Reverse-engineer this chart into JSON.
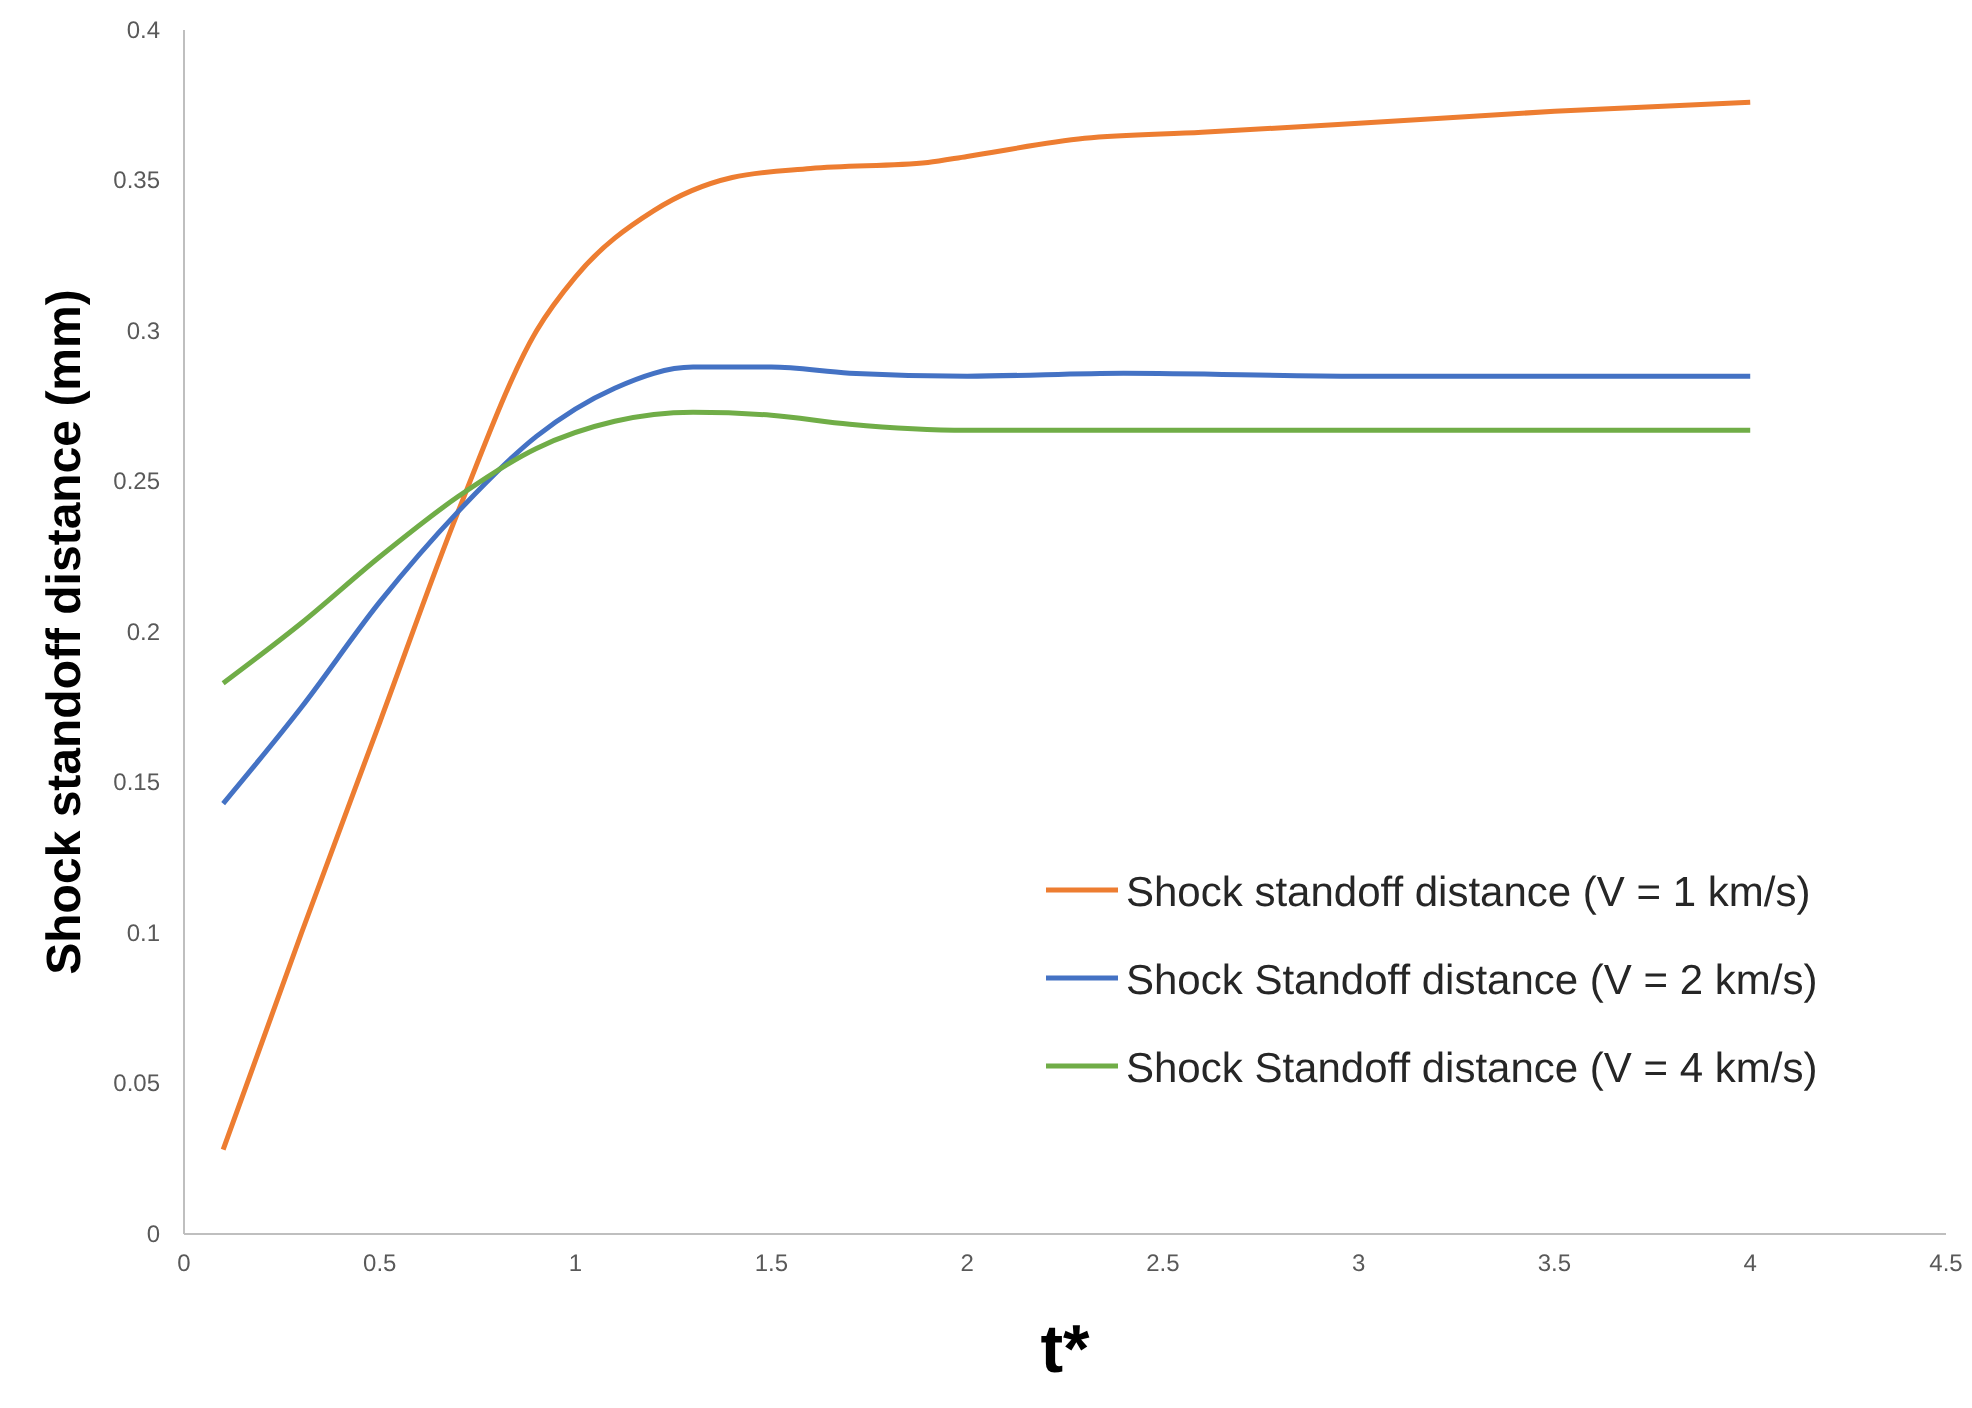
{
  "chart_data": {
    "type": "line",
    "xlabel": "t*",
    "ylabel": "Shock standoff distance (mm)",
    "xlim": [
      0,
      4.5
    ],
    "xticks": [
      0,
      0.5,
      1,
      1.5,
      2,
      2.5,
      3,
      3.5,
      4,
      4.5
    ],
    "ylim": [
      0,
      0.4
    ],
    "yticks": [
      0,
      0.05,
      0.1,
      0.15,
      0.2,
      0.25,
      0.3,
      0.35,
      0.4
    ],
    "grid": false,
    "legend": "bottom right",
    "marker": "none",
    "line_style": "solid",
    "series": [
      {
        "name": "Shock standoff distance (V = 1 km/s)",
        "color": "#ed7d31",
        "x": [
          0.1,
          0.3,
          0.5,
          0.7,
          0.9,
          1.0,
          1.2,
          1.4,
          1.6,
          1.9,
          2.0,
          2.3,
          2.6,
          3.0,
          3.5,
          4.0
        ],
        "values": [
          0.028,
          0.1,
          0.17,
          0.24,
          0.3,
          0.318,
          0.34,
          0.351,
          0.354,
          0.356,
          0.358,
          0.364,
          0.366,
          0.369,
          0.373,
          0.376
        ]
      },
      {
        "name": "Shock Standoff distance (V = 2 km/s)",
        "color": "#4472c4",
        "x": [
          0.1,
          0.3,
          0.5,
          0.7,
          0.9,
          1.1,
          1.3,
          1.5,
          1.7,
          2.0,
          2.4,
          3.0,
          4.0
        ],
        "values": [
          0.143,
          0.175,
          0.21,
          0.24,
          0.265,
          0.281,
          0.288,
          0.288,
          0.286,
          0.285,
          0.286,
          0.285,
          0.285
        ]
      },
      {
        "name": "Shock Standoff distance (V = 4 km/s)",
        "color": "#70ad47",
        "x": [
          0.1,
          0.3,
          0.5,
          0.7,
          0.9,
          1.1,
          1.3,
          1.5,
          1.7,
          2.0,
          3.0,
          4.0
        ],
        "values": [
          0.183,
          0.203,
          0.225,
          0.245,
          0.261,
          0.27,
          0.273,
          0.272,
          0.269,
          0.267,
          0.267,
          0.267
        ]
      }
    ]
  }
}
